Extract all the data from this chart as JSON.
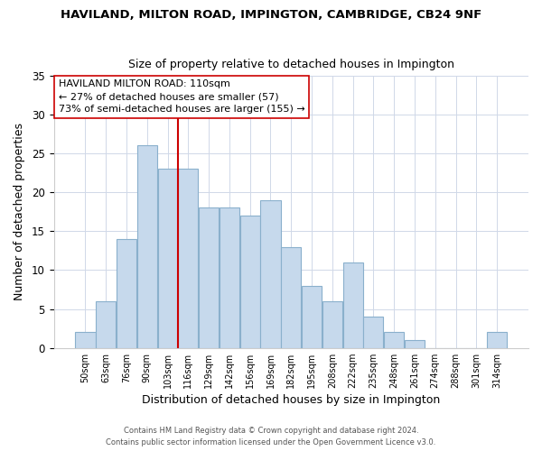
{
  "title": "HAVILAND, MILTON ROAD, IMPINGTON, CAMBRIDGE, CB24 9NF",
  "subtitle": "Size of property relative to detached houses in Impington",
  "xlabel": "Distribution of detached houses by size in Impington",
  "ylabel": "Number of detached properties",
  "bin_labels": [
    "50sqm",
    "63sqm",
    "76sqm",
    "90sqm",
    "103sqm",
    "116sqm",
    "129sqm",
    "142sqm",
    "156sqm",
    "169sqm",
    "182sqm",
    "195sqm",
    "208sqm",
    "222sqm",
    "235sqm",
    "248sqm",
    "261sqm",
    "274sqm",
    "288sqm",
    "301sqm",
    "314sqm"
  ],
  "bar_heights": [
    2,
    6,
    14,
    26,
    23,
    23,
    18,
    18,
    17,
    19,
    13,
    8,
    6,
    11,
    4,
    2,
    1,
    0,
    0,
    0,
    2
  ],
  "bar_color": "#c6d9ec",
  "bar_edge_color": "#8ab0cc",
  "vline_x": 4.5,
  "vline_color": "#cc0000",
  "annotation_title": "HAVILAND MILTON ROAD: 110sqm",
  "annotation_line1": "← 27% of detached houses are smaller (57)",
  "annotation_line2": "73% of semi-detached houses are larger (155) →",
  "ylim": [
    0,
    35
  ],
  "yticks": [
    0,
    5,
    10,
    15,
    20,
    25,
    30,
    35
  ],
  "footer1": "Contains HM Land Registry data © Crown copyright and database right 2024.",
  "footer2": "Contains public sector information licensed under the Open Government Licence v3.0."
}
